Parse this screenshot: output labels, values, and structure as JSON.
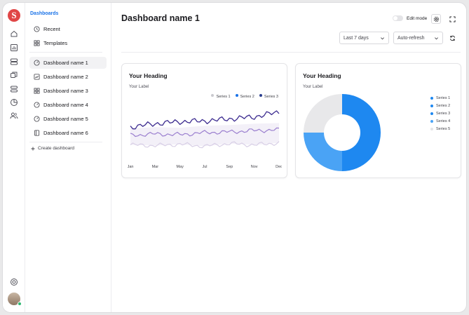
{
  "sidebar": {
    "section_title": "Dashboards",
    "top_items": [
      {
        "label": "Recent",
        "icon": "clock-icon"
      },
      {
        "label": "Templates",
        "icon": "grid-icon"
      }
    ],
    "dashboards": [
      {
        "label": "Dashboard name 1",
        "icon": "gauge-icon",
        "active": true
      },
      {
        "label": "Dashboard name 2",
        "icon": "chart-line-icon"
      },
      {
        "label": "Dashboard name 3",
        "icon": "grid-icon"
      },
      {
        "label": "Dashboard name 4",
        "icon": "gauge-icon"
      },
      {
        "label": "Dashboard name 5",
        "icon": "gauge-icon"
      },
      {
        "label": "Dashboard name 6",
        "icon": "book-icon"
      }
    ],
    "create_label": "Create dashboard"
  },
  "header": {
    "title": "Dashboard name 1",
    "edit_mode_label": "Edit mode",
    "edit_mode_on": false,
    "range_select": "Last 7 days",
    "refresh_select": "Auto-refresh"
  },
  "cards": [
    {
      "heading": "Your Heading",
      "label": "Your Label"
    },
    {
      "heading": "Your Heading",
      "label": "Your Label"
    }
  ],
  "colors": {
    "accent": "#1a73e8",
    "line_series_1": "#d8cfe6",
    "line_series_2": "#9b7fcf",
    "line_series_3": "#3b2a8f",
    "pie_series_1": "#1e88f0",
    "pie_series_2": "#4aa3f5",
    "pie_series_5": "#e8e8ea"
  },
  "chart_data": [
    {
      "type": "line",
      "title": "Your Heading",
      "subtitle": "Your Label",
      "categories": [
        "Jan",
        "Mar",
        "May",
        "Jul",
        "Sep",
        "Nov",
        "Dec"
      ],
      "legend_position": "top-right",
      "series": [
        {
          "name": "Series 1",
          "values": [
            22,
            21,
            23,
            20,
            24,
            22,
            25
          ]
        },
        {
          "name": "Series 2",
          "values": [
            36,
            38,
            37,
            40,
            41,
            43,
            44
          ]
        },
        {
          "name": "Series 3",
          "values": [
            48,
            53,
            56,
            57,
            60,
            63,
            70
          ]
        }
      ]
    },
    {
      "type": "pie",
      "title": "Your Heading",
      "subtitle": "Your Label",
      "labels": [
        "Series 1",
        "Series 2",
        "Series 3",
        "Series 4",
        "Series 5"
      ],
      "values": [
        50,
        25,
        0,
        0,
        25
      ],
      "legend_position": "right"
    }
  ]
}
